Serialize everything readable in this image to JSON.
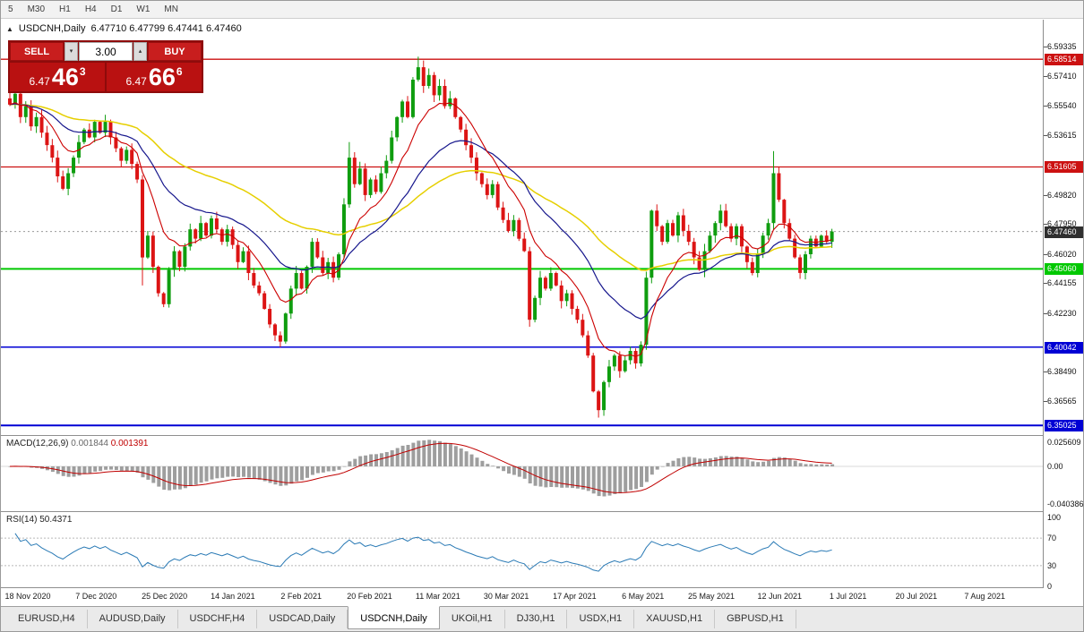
{
  "toolbar": {
    "timeframes": [
      {
        "label": "5"
      },
      {
        "label": "M30"
      },
      {
        "label": "H1"
      },
      {
        "label": "H4"
      },
      {
        "label": "D1"
      },
      {
        "label": "W1"
      },
      {
        "label": "MN"
      }
    ]
  },
  "icons": {
    "collapse": "▲",
    "spin_down": "▾",
    "spin_up": "▴"
  },
  "chart_header": {
    "symbol": "USDCNH,Daily",
    "ohlc": "6.47710 6.47799 6.47441 6.47460"
  },
  "trade_panel": {
    "sell_label": "SELL",
    "buy_label": "BUY",
    "volume": "3.00",
    "sell_price": {
      "base": "6.47",
      "pips": "46",
      "point": "3"
    },
    "buy_price": {
      "base": "6.47",
      "pips": "66",
      "point": "6"
    }
  },
  "levels": [
    {
      "label": "6.58514",
      "value": 6.58514,
      "color": "#cc1111",
      "width": 1.3
    },
    {
      "label": "6.51605",
      "value": 6.51605,
      "color": "#cc1111",
      "width": 1.3
    },
    {
      "label": "6.45060",
      "value": 6.4506,
      "color": "#00c800",
      "width": 2
    },
    {
      "label": "6.40042",
      "value": 6.40042,
      "color": "#0000d4",
      "width": 1.5
    },
    {
      "label": "6.35025",
      "value": 6.35025,
      "color": "#0000d4",
      "width": 2
    }
  ],
  "price_axis": {
    "ticks": [
      "6.59335",
      "6.57410",
      "6.55540",
      "6.53615",
      "6.49820",
      "6.47950",
      "6.46020",
      "6.44155",
      "6.42230",
      "6.38490",
      "6.36565"
    ],
    "current": {
      "value": "6.47460",
      "bg": "#2f2f2f"
    }
  },
  "macd_panel": {
    "label": "MACD(12,26,9)",
    "main_value": "0.001844",
    "signal_value": "0.001391",
    "axis": [
      "0.025609",
      "0.00",
      "-0.040386"
    ],
    "histogram_color": "#9e9e9e",
    "signal_color": "#c00000"
  },
  "rsi_panel": {
    "label": "RSI(14)",
    "value": "50.4371",
    "axis": [
      "100",
      "70",
      "30",
      "0"
    ],
    "levels": [
      70,
      30
    ],
    "line_color": "#2a7ab5"
  },
  "tabs": [
    {
      "label": "EURUSD,H4"
    },
    {
      "label": "AUDUSD,Daily"
    },
    {
      "label": "USDCHF,H4"
    },
    {
      "label": "USDCAD,Daily"
    },
    {
      "label": "USDCNH,Daily",
      "active": true
    },
    {
      "label": "UKOil,H1"
    },
    {
      "label": "DJ30,H1"
    },
    {
      "label": "USDX,H1"
    },
    {
      "label": "XAUUSD,H1"
    },
    {
      "label": "GBPUSD,H1"
    }
  ],
  "chart_data": {
    "type": "candlestick",
    "title": "USDCNH,Daily",
    "ylim": [
      6.3439,
      6.6052
    ],
    "x_labels": [
      "18 Nov 2020",
      "7 Dec 2020",
      "25 Dec 2020",
      "14 Jan 2021",
      "2 Feb 2021",
      "20 Feb 2021",
      "11 Mar 2021",
      "30 Mar 2021",
      "17 Apr 2021",
      "6 May 2021",
      "25 May 2021",
      "12 Jun 2021",
      "1 Jul 2021",
      "20 Jul 2021",
      "7 Aug 2021"
    ],
    "up_color": "#0f9d0f",
    "down_color": "#dc1414",
    "first_open": 6.56,
    "wick_base": 0.0022,
    "closes": [
      6.556,
      6.563,
      6.548,
      6.555,
      6.542,
      6.548,
      6.538,
      6.53,
      6.522,
      6.51,
      6.502,
      6.512,
      6.522,
      6.532,
      6.54,
      6.535,
      6.545,
      6.538,
      6.545,
      6.535,
      6.528,
      6.52,
      6.527,
      6.518,
      6.508,
      6.458,
      6.472,
      6.452,
      6.435,
      6.428,
      6.45,
      6.462,
      6.452,
      6.465,
      6.476,
      6.47,
      6.48,
      6.472,
      6.483,
      6.476,
      6.468,
      6.476,
      6.466,
      6.455,
      6.462,
      6.448,
      6.44,
      6.435,
      6.425,
      6.415,
      6.408,
      6.404,
      6.422,
      6.438,
      6.448,
      6.438,
      6.452,
      6.468,
      6.458,
      6.448,
      6.455,
      6.445,
      6.46,
      6.492,
      6.522,
      6.505,
      6.515,
      6.498,
      6.508,
      6.5,
      6.512,
      6.52,
      6.535,
      6.548,
      6.558,
      6.548,
      6.572,
      6.58,
      6.568,
      6.575,
      6.562,
      6.568,
      6.555,
      6.56,
      6.548,
      6.54,
      6.53,
      6.522,
      6.512,
      6.505,
      6.498,
      6.505,
      6.49,
      6.482,
      6.475,
      6.482,
      6.47,
      6.462,
      6.418,
      6.432,
      6.445,
      6.438,
      6.448,
      6.44,
      6.43,
      6.435,
      6.425,
      6.418,
      6.408,
      6.395,
      6.372,
      6.36,
      6.378,
      6.388,
      6.395,
      6.385,
      6.392,
      6.398,
      6.39,
      6.402,
      6.445,
      6.488,
      6.478,
      6.468,
      6.48,
      6.472,
      6.485,
      6.475,
      6.468,
      6.458,
      6.45,
      6.462,
      6.472,
      6.48,
      6.488,
      6.478,
      6.47,
      6.478,
      6.465,
      6.455,
      6.448,
      6.46,
      6.472,
      6.48,
      6.512,
      6.495,
      6.48,
      6.47,
      6.458,
      6.448,
      6.46,
      6.47,
      6.465,
      6.472,
      6.468,
      6.4746
    ],
    "wick_overrides": {
      "25": {
        "low": 6.44
      },
      "51": {
        "low": 6.4004
      },
      "64": {
        "high": 6.532
      },
      "77": {
        "high": 6.5868
      },
      "98": {
        "low": 6.4135
      },
      "111": {
        "low": 6.3552
      },
      "144": {
        "high": 6.5262
      }
    },
    "ma": [
      {
        "period": 55,
        "color": "#e6cf00",
        "width": 1.5
      },
      {
        "period": 25,
        "color": "#16168c",
        "width": 1.2
      },
      {
        "period": 10,
        "color": "#cc0000",
        "width": 1.1
      }
    ]
  }
}
